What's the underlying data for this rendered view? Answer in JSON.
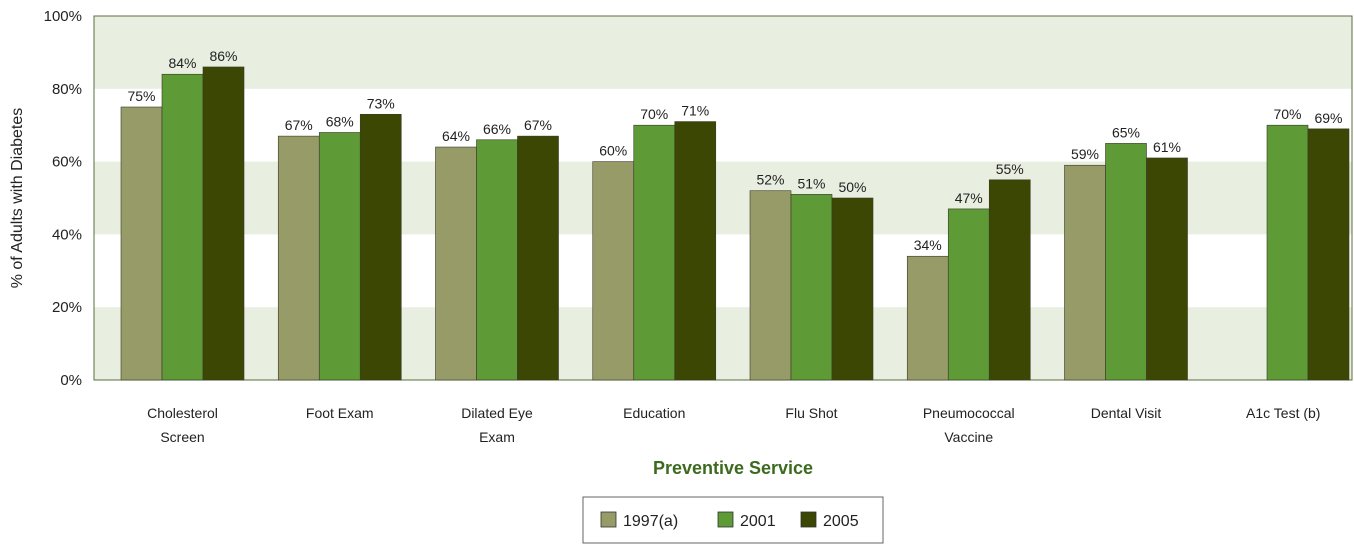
{
  "chart_data": {
    "type": "bar",
    "title": "",
    "xlabel": "Preventive Service",
    "ylabel": "% of Adults with Diabetes",
    "ylim": [
      0,
      100
    ],
    "yticks": [
      "0%",
      "20%",
      "40%",
      "60%",
      "80%",
      "100%"
    ],
    "categories": [
      [
        "Cholesterol",
        "Screen"
      ],
      [
        "Foot Exam"
      ],
      [
        "Dilated Eye",
        "Exam"
      ],
      [
        "Education"
      ],
      [
        "Flu Shot"
      ],
      [
        "Pneumococcal",
        "Vaccine"
      ],
      [
        "Dental Visit"
      ],
      [
        "A1c Test (b)"
      ]
    ],
    "series": [
      {
        "name": "1997(a)",
        "color": "#979b68",
        "values": [
          75,
          67,
          64,
          60,
          52,
          34,
          59,
          null
        ],
        "labels": [
          "75%",
          "67%",
          "64%",
          "60%",
          "52%",
          "34%",
          "59%",
          null
        ]
      },
      {
        "name": "2001",
        "color": "#5e9a36",
        "values": [
          84,
          68,
          66,
          70,
          51,
          47,
          65,
          70
        ],
        "labels": [
          "84%",
          "68%",
          "66%",
          "70%",
          "51%",
          "47%",
          "65%",
          "70%"
        ]
      },
      {
        "name": "2005",
        "color": "#3b4702",
        "values": [
          86,
          73,
          67,
          71,
          50,
          55,
          61,
          69
        ],
        "labels": [
          "86%",
          "73%",
          "67%",
          "71%",
          "50%",
          "55%",
          "61%",
          "69%"
        ]
      }
    ],
    "grid": "alternating bands",
    "band_color": "#e8efe0",
    "legend_position": "bottom-center"
  }
}
